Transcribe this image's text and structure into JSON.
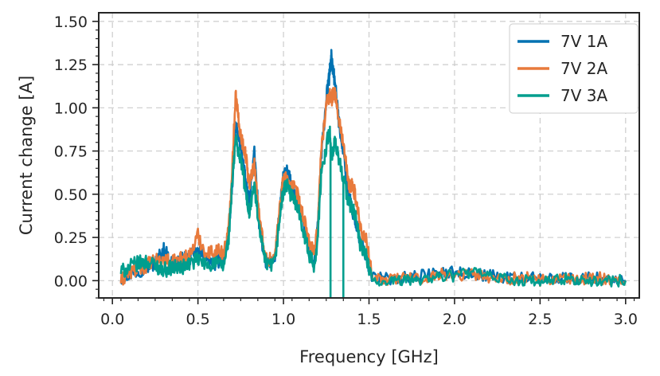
{
  "chart_data": {
    "type": "line",
    "xlabel": "Frequency [GHz]",
    "ylabel": "Current change [A]",
    "xlim": [
      -0.08,
      3.08
    ],
    "ylim": [
      -0.1,
      1.55
    ],
    "x_ticks": [
      "0.0",
      "0.5",
      "1.0",
      "1.5",
      "2.0",
      "2.5",
      "3.0"
    ],
    "x_tick_values": [
      0.0,
      0.5,
      1.0,
      1.5,
      2.0,
      2.5,
      3.0
    ],
    "y_ticks": [
      "0.00",
      "0.25",
      "0.50",
      "0.75",
      "1.00",
      "1.25",
      "1.50"
    ],
    "y_tick_values": [
      0.0,
      0.25,
      0.5,
      0.75,
      1.0,
      1.25,
      1.5
    ],
    "grid": true,
    "legend_position": "top-right",
    "series": [
      {
        "name": "7V 1A",
        "color": "#0072B2",
        "points": [
          [
            0.05,
            0.02
          ],
          [
            0.1,
            0.04
          ],
          [
            0.15,
            0.06
          ],
          [
            0.2,
            0.08
          ],
          [
            0.25,
            0.1
          ],
          [
            0.3,
            0.18
          ],
          [
            0.35,
            0.1
          ],
          [
            0.4,
            0.12
          ],
          [
            0.45,
            0.13
          ],
          [
            0.5,
            0.17
          ],
          [
            0.55,
            0.12
          ],
          [
            0.6,
            0.1
          ],
          [
            0.65,
            0.14
          ],
          [
            0.68,
            0.25
          ],
          [
            0.7,
            0.55
          ],
          [
            0.72,
            0.9
          ],
          [
            0.74,
            0.82
          ],
          [
            0.76,
            0.72
          ],
          [
            0.78,
            0.55
          ],
          [
            0.8,
            0.45
          ],
          [
            0.83,
            0.74
          ],
          [
            0.86,
            0.3
          ],
          [
            0.9,
            0.1
          ],
          [
            0.95,
            0.12
          ],
          [
            0.98,
            0.42
          ],
          [
            1.0,
            0.6
          ],
          [
            1.02,
            0.63
          ],
          [
            1.05,
            0.55
          ],
          [
            1.08,
            0.48
          ],
          [
            1.12,
            0.3
          ],
          [
            1.15,
            0.18
          ],
          [
            1.18,
            0.1
          ],
          [
            1.2,
            0.3
          ],
          [
            1.22,
            0.7
          ],
          [
            1.25,
            1.05
          ],
          [
            1.27,
            1.2
          ],
          [
            1.28,
            1.3
          ],
          [
            1.3,
            1.15
          ],
          [
            1.32,
            0.95
          ],
          [
            1.35,
            0.75
          ],
          [
            1.38,
            0.5
          ],
          [
            1.4,
            0.42
          ],
          [
            1.42,
            0.35
          ],
          [
            1.45,
            0.22
          ],
          [
            1.48,
            0.15
          ],
          [
            1.52,
            0.02
          ],
          [
            1.6,
            0.01
          ],
          [
            1.7,
            0.02
          ],
          [
            1.8,
            0.03
          ],
          [
            1.9,
            0.04
          ],
          [
            2.0,
            0.05
          ],
          [
            2.1,
            0.04
          ],
          [
            2.2,
            0.03
          ],
          [
            2.3,
            0.02
          ],
          [
            2.4,
            0.02
          ],
          [
            2.5,
            0.01
          ],
          [
            2.6,
            0.02
          ],
          [
            2.7,
            0.01
          ],
          [
            2.8,
            0.02
          ],
          [
            2.9,
            0.01
          ],
          [
            3.0,
            0.0
          ]
        ]
      },
      {
        "name": "7V 2A",
        "color": "#E87A3C",
        "points": [
          [
            0.05,
            0.0
          ],
          [
            0.1,
            0.05
          ],
          [
            0.15,
            0.07
          ],
          [
            0.2,
            0.09
          ],
          [
            0.25,
            0.11
          ],
          [
            0.3,
            0.12
          ],
          [
            0.35,
            0.1
          ],
          [
            0.4,
            0.13
          ],
          [
            0.45,
            0.14
          ],
          [
            0.5,
            0.26
          ],
          [
            0.55,
            0.15
          ],
          [
            0.6,
            0.18
          ],
          [
            0.65,
            0.16
          ],
          [
            0.68,
            0.3
          ],
          [
            0.7,
            0.65
          ],
          [
            0.72,
            1.08
          ],
          [
            0.74,
            0.9
          ],
          [
            0.76,
            0.8
          ],
          [
            0.78,
            0.72
          ],
          [
            0.8,
            0.55
          ],
          [
            0.83,
            0.68
          ],
          [
            0.86,
            0.35
          ],
          [
            0.9,
            0.12
          ],
          [
            0.95,
            0.14
          ],
          [
            0.98,
            0.45
          ],
          [
            1.0,
            0.6
          ],
          [
            1.02,
            0.58
          ],
          [
            1.05,
            0.55
          ],
          [
            1.08,
            0.5
          ],
          [
            1.12,
            0.35
          ],
          [
            1.15,
            0.22
          ],
          [
            1.18,
            0.15
          ],
          [
            1.2,
            0.3
          ],
          [
            1.22,
            0.75
          ],
          [
            1.25,
            1.02
          ],
          [
            1.27,
            1.08
          ],
          [
            1.28,
            1.05
          ],
          [
            1.3,
            1.1
          ],
          [
            1.32,
            0.95
          ],
          [
            1.35,
            0.8
          ],
          [
            1.38,
            0.55
          ],
          [
            1.4,
            0.55
          ],
          [
            1.42,
            0.5
          ],
          [
            1.45,
            0.3
          ],
          [
            1.48,
            0.25
          ],
          [
            1.52,
            0.03
          ],
          [
            1.6,
            0.0
          ],
          [
            1.7,
            0.02
          ],
          [
            1.8,
            0.01
          ],
          [
            1.9,
            0.04
          ],
          [
            2.0,
            0.03
          ],
          [
            2.1,
            0.04
          ],
          [
            2.2,
            0.02
          ],
          [
            2.3,
            0.01
          ],
          [
            2.4,
            0.02
          ],
          [
            2.5,
            0.0
          ],
          [
            2.6,
            0.01
          ],
          [
            2.7,
            0.0
          ],
          [
            2.8,
            0.02
          ],
          [
            2.9,
            0.01
          ],
          [
            3.0,
            0.0
          ]
        ]
      },
      {
        "name": "7V 3A",
        "color": "#009E8E",
        "points": [
          [
            0.05,
            0.05
          ],
          [
            0.1,
            0.08
          ],
          [
            0.15,
            0.1
          ],
          [
            0.2,
            0.11
          ],
          [
            0.25,
            0.09
          ],
          [
            0.3,
            0.06
          ],
          [
            0.35,
            0.08
          ],
          [
            0.4,
            0.07
          ],
          [
            0.45,
            0.1
          ],
          [
            0.5,
            0.12
          ],
          [
            0.55,
            0.09
          ],
          [
            0.6,
            0.1
          ],
          [
            0.65,
            0.08
          ],
          [
            0.68,
            0.25
          ],
          [
            0.7,
            0.55
          ],
          [
            0.72,
            0.82
          ],
          [
            0.74,
            0.74
          ],
          [
            0.76,
            0.65
          ],
          [
            0.78,
            0.5
          ],
          [
            0.8,
            0.4
          ],
          [
            0.83,
            0.55
          ],
          [
            0.86,
            0.28
          ],
          [
            0.9,
            0.08
          ],
          [
            0.95,
            0.1
          ],
          [
            0.98,
            0.38
          ],
          [
            1.0,
            0.52
          ],
          [
            1.02,
            0.55
          ],
          [
            1.05,
            0.48
          ],
          [
            1.08,
            0.44
          ],
          [
            1.12,
            0.28
          ],
          [
            1.15,
            0.15
          ],
          [
            1.18,
            0.08
          ],
          [
            1.2,
            0.25
          ],
          [
            1.22,
            0.6
          ],
          [
            1.25,
            0.78
          ],
          [
            1.27,
            0.88
          ],
          [
            1.28,
            0.7
          ],
          [
            1.3,
            0.8
          ],
          [
            1.32,
            0.72
          ],
          [
            1.35,
            0.6
          ],
          [
            1.38,
            0.45
          ],
          [
            1.4,
            0.42
          ],
          [
            1.42,
            0.38
          ],
          [
            1.45,
            0.2
          ],
          [
            1.48,
            0.15
          ],
          [
            1.52,
            0.0
          ],
          [
            1.6,
            -0.02
          ],
          [
            1.7,
            0.0
          ],
          [
            1.8,
            0.01
          ],
          [
            1.9,
            0.02
          ],
          [
            2.0,
            0.03
          ],
          [
            2.1,
            0.05
          ],
          [
            2.2,
            0.02
          ],
          [
            2.3,
            0.01
          ],
          [
            2.4,
            0.0
          ],
          [
            2.5,
            -0.01
          ],
          [
            2.6,
            0.0
          ],
          [
            2.7,
            0.01
          ],
          [
            2.8,
            -0.01
          ],
          [
            2.9,
            0.0
          ],
          [
            3.0,
            0.0
          ]
        ]
      }
    ]
  }
}
